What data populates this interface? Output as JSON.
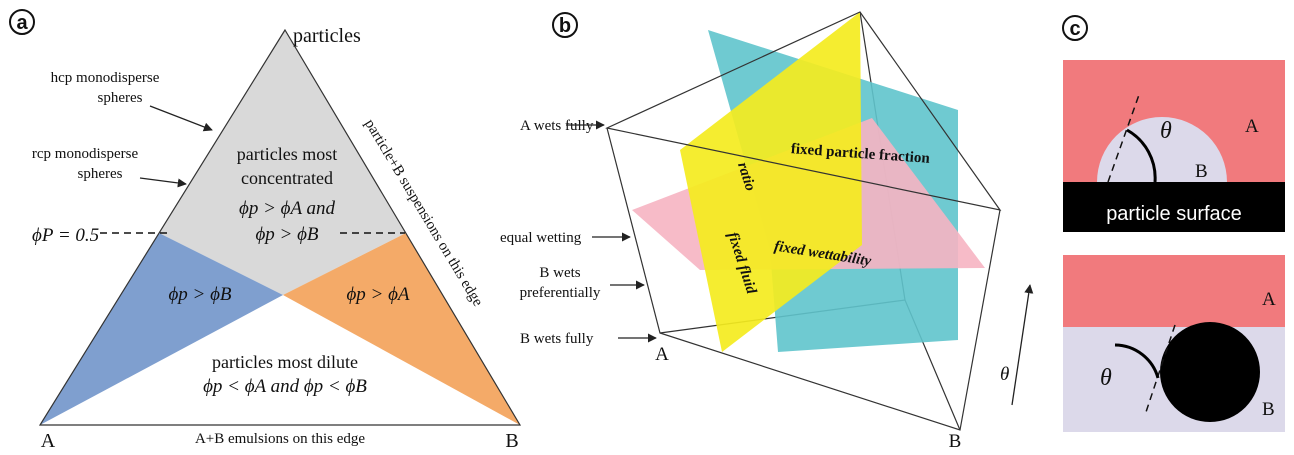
{
  "panel_a": {
    "label": "a",
    "apex": "particles",
    "left_corner": "A",
    "right_corner": "B",
    "hcp": [
      "hcp monodisperse",
      "spheres"
    ],
    "rcp": [
      "rcp monodisperse",
      "spheres"
    ],
    "phi_line": "ϕP = 0.5",
    "right_edge": "particle+B suspensions on this edge",
    "bottom_edge": "A+B emulsions on this edge",
    "top_region": [
      "particles most",
      "concentrated",
      "ϕp > ϕA and",
      "ϕp > ϕB"
    ],
    "left_region": "ϕp > ϕB",
    "right_region": "ϕp > ϕA",
    "bottom_region": [
      "particles most dilute",
      "ϕp < ϕA and ϕp < ϕB"
    ]
  },
  "panel_b": {
    "label": "b",
    "fluid_ratio": [
      "fixed fluid",
      "ratio"
    ],
    "particle_fraction": "fixed particle fraction",
    "wettability": "fixed wettability",
    "a_wets": "A wets fully",
    "equal": "equal wetting",
    "b_pref": [
      "B wets",
      "preferentially"
    ],
    "b_full": "B wets fully",
    "corner_a": "A",
    "corner_b": "B",
    "theta": "θ"
  },
  "panel_c": {
    "label": "c",
    "theta_top": "θ",
    "a_top": "A",
    "b_top": "B",
    "surface": "particle surface",
    "theta_bottom": "θ",
    "a_bottom": "A",
    "b_bottom": "B"
  }
}
